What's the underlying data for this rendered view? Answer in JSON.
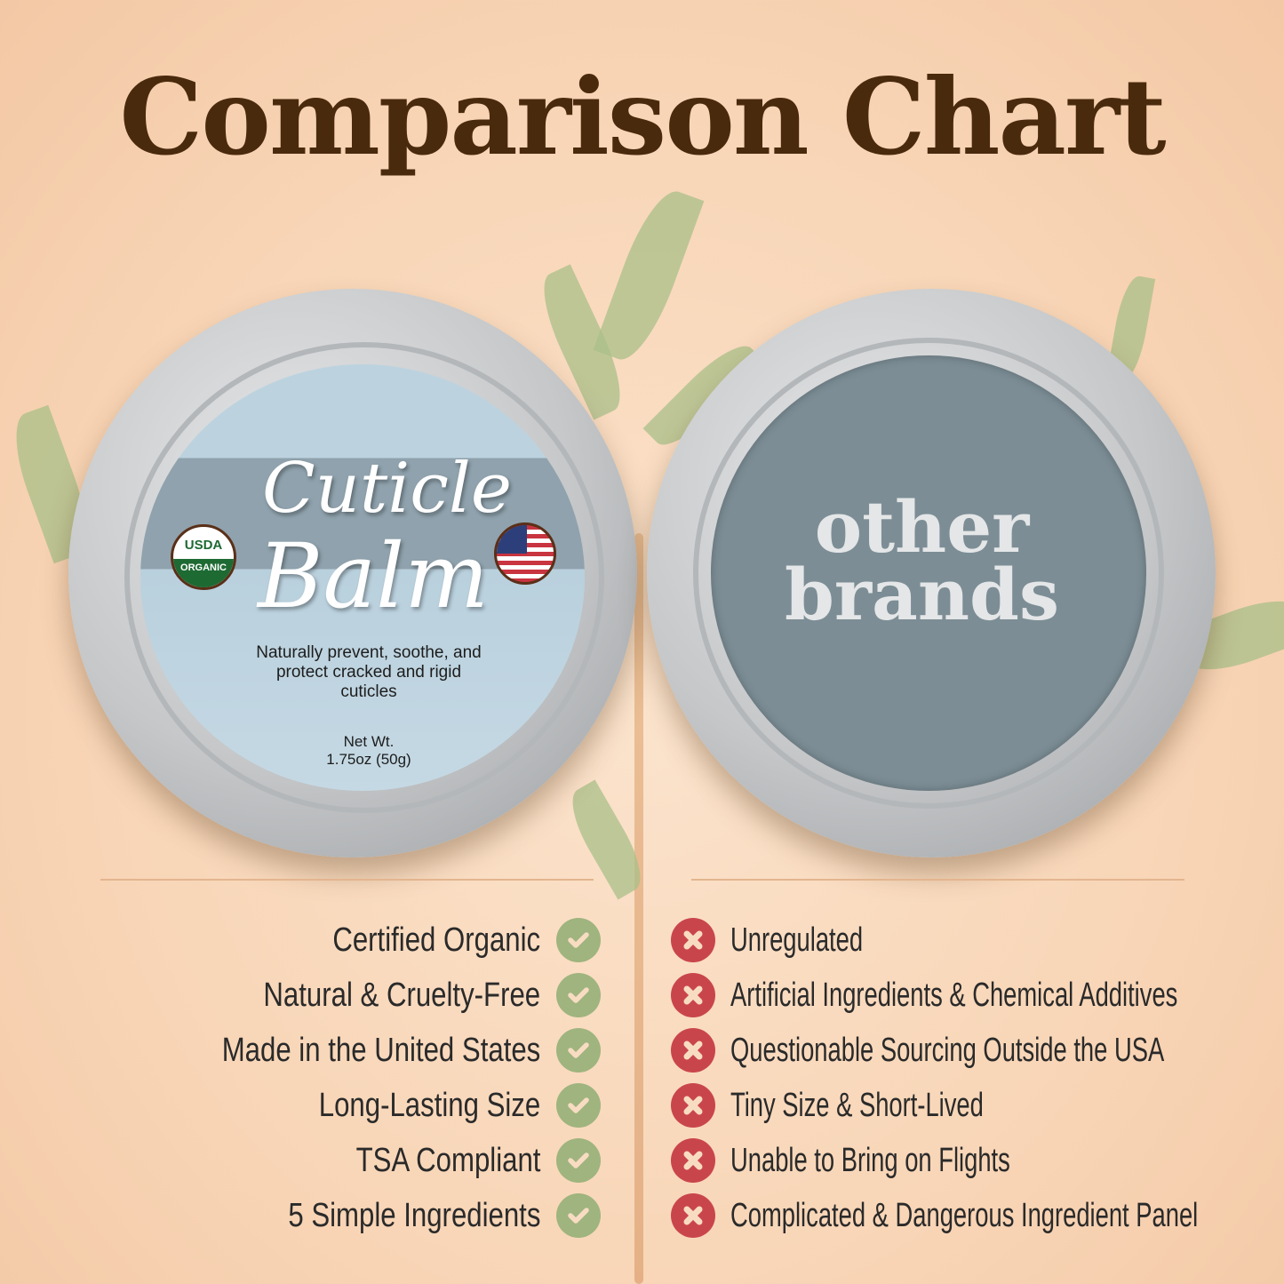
{
  "title": "Comparison Chart",
  "product": {
    "name_line1": "Cuticle",
    "name_line2": "Balm",
    "tagline": "Naturally prevent, soothe, and protect cracked and rigid cuticles",
    "net_weight_label": "Net Wt.",
    "net_weight": "1.75oz (50g)",
    "badge_top": "USDA",
    "badge_bottom": "ORGANIC"
  },
  "competitor": {
    "line1": "other",
    "line2": "brands"
  },
  "colors": {
    "title": "#4a2a0d",
    "check": "#9fb47e",
    "cross": "#c9454c",
    "background": "#f8d5b6"
  },
  "pros": [
    {
      "label": "Certified Organic",
      "icon": "check-circle-icon"
    },
    {
      "label": "Natural & Cruelty-Free",
      "icon": "check-circle-icon"
    },
    {
      "label": "Made in the United States",
      "icon": "check-circle-icon"
    },
    {
      "label": "Long-Lasting Size",
      "icon": "check-circle-icon"
    },
    {
      "label": "TSA Compliant",
      "icon": "check-circle-icon"
    },
    {
      "label": "5 Simple Ingredients",
      "icon": "check-circle-icon"
    }
  ],
  "cons": [
    {
      "label": "Unregulated",
      "icon": "x-circle-icon"
    },
    {
      "label": "Artificial Ingredients & Chemical Additives",
      "icon": "x-circle-icon"
    },
    {
      "label": "Questionable Sourcing Outside the USA",
      "icon": "x-circle-icon"
    },
    {
      "label": "Tiny Size & Short-Lived",
      "icon": "x-circle-icon"
    },
    {
      "label": "Unable to Bring on Flights",
      "icon": "x-circle-icon"
    },
    {
      "label": "Complicated & Dangerous Ingredient Panel",
      "icon": "x-circle-icon"
    }
  ]
}
